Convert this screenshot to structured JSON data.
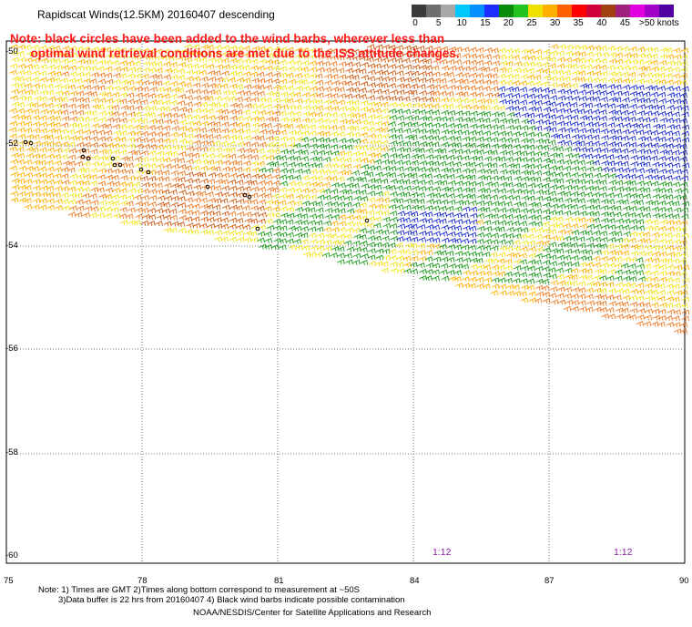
{
  "title": "Rapidscat Winds(12.5KM) 20160407 descending",
  "note_lines": [
    "Note: black circles have been added to the wind barbs, wherever less than",
    "      optimal wind retrieval conditions are met due to the ISS attitude changes."
  ],
  "color_scale": {
    "labels": [
      "0",
      "5",
      "10",
      "15",
      "20",
      "25",
      "30",
      "35",
      "40",
      "45",
      ">50 knots"
    ],
    "colors": [
      "#3a3a3a",
      "#6e6e6e",
      "#a8a8a8",
      "#00c8ff",
      "#0090ff",
      "#1d2dff",
      "#0a8a0a",
      "#22c422",
      "#f0e000",
      "#ffb000",
      "#ff6000",
      "#ff0000",
      "#d0003a",
      "#a04010",
      "#a02080",
      "#e000e0",
      "#a000c8",
      "#5000a0"
    ]
  },
  "axes": {
    "lon_labels": [
      "75",
      "78",
      "81",
      "84",
      "87",
      "90"
    ],
    "lat_labels": [
      "-50",
      "-52",
      "-54",
      "-56",
      "-58",
      "-60"
    ]
  },
  "time_labels": [
    "1:12",
    "1:12"
  ],
  "footer": {
    "line1": "Note: 1) Times are GMT 2)Times along bottom correspond to measurement at ~50S",
    "line2": "3)Data buffer is 22 hrs from 20160407 4) Black wind barbs indicate possible contamination",
    "credit": "NOAA/NESDIS/Center for Satellite Applications and Research"
  }
}
